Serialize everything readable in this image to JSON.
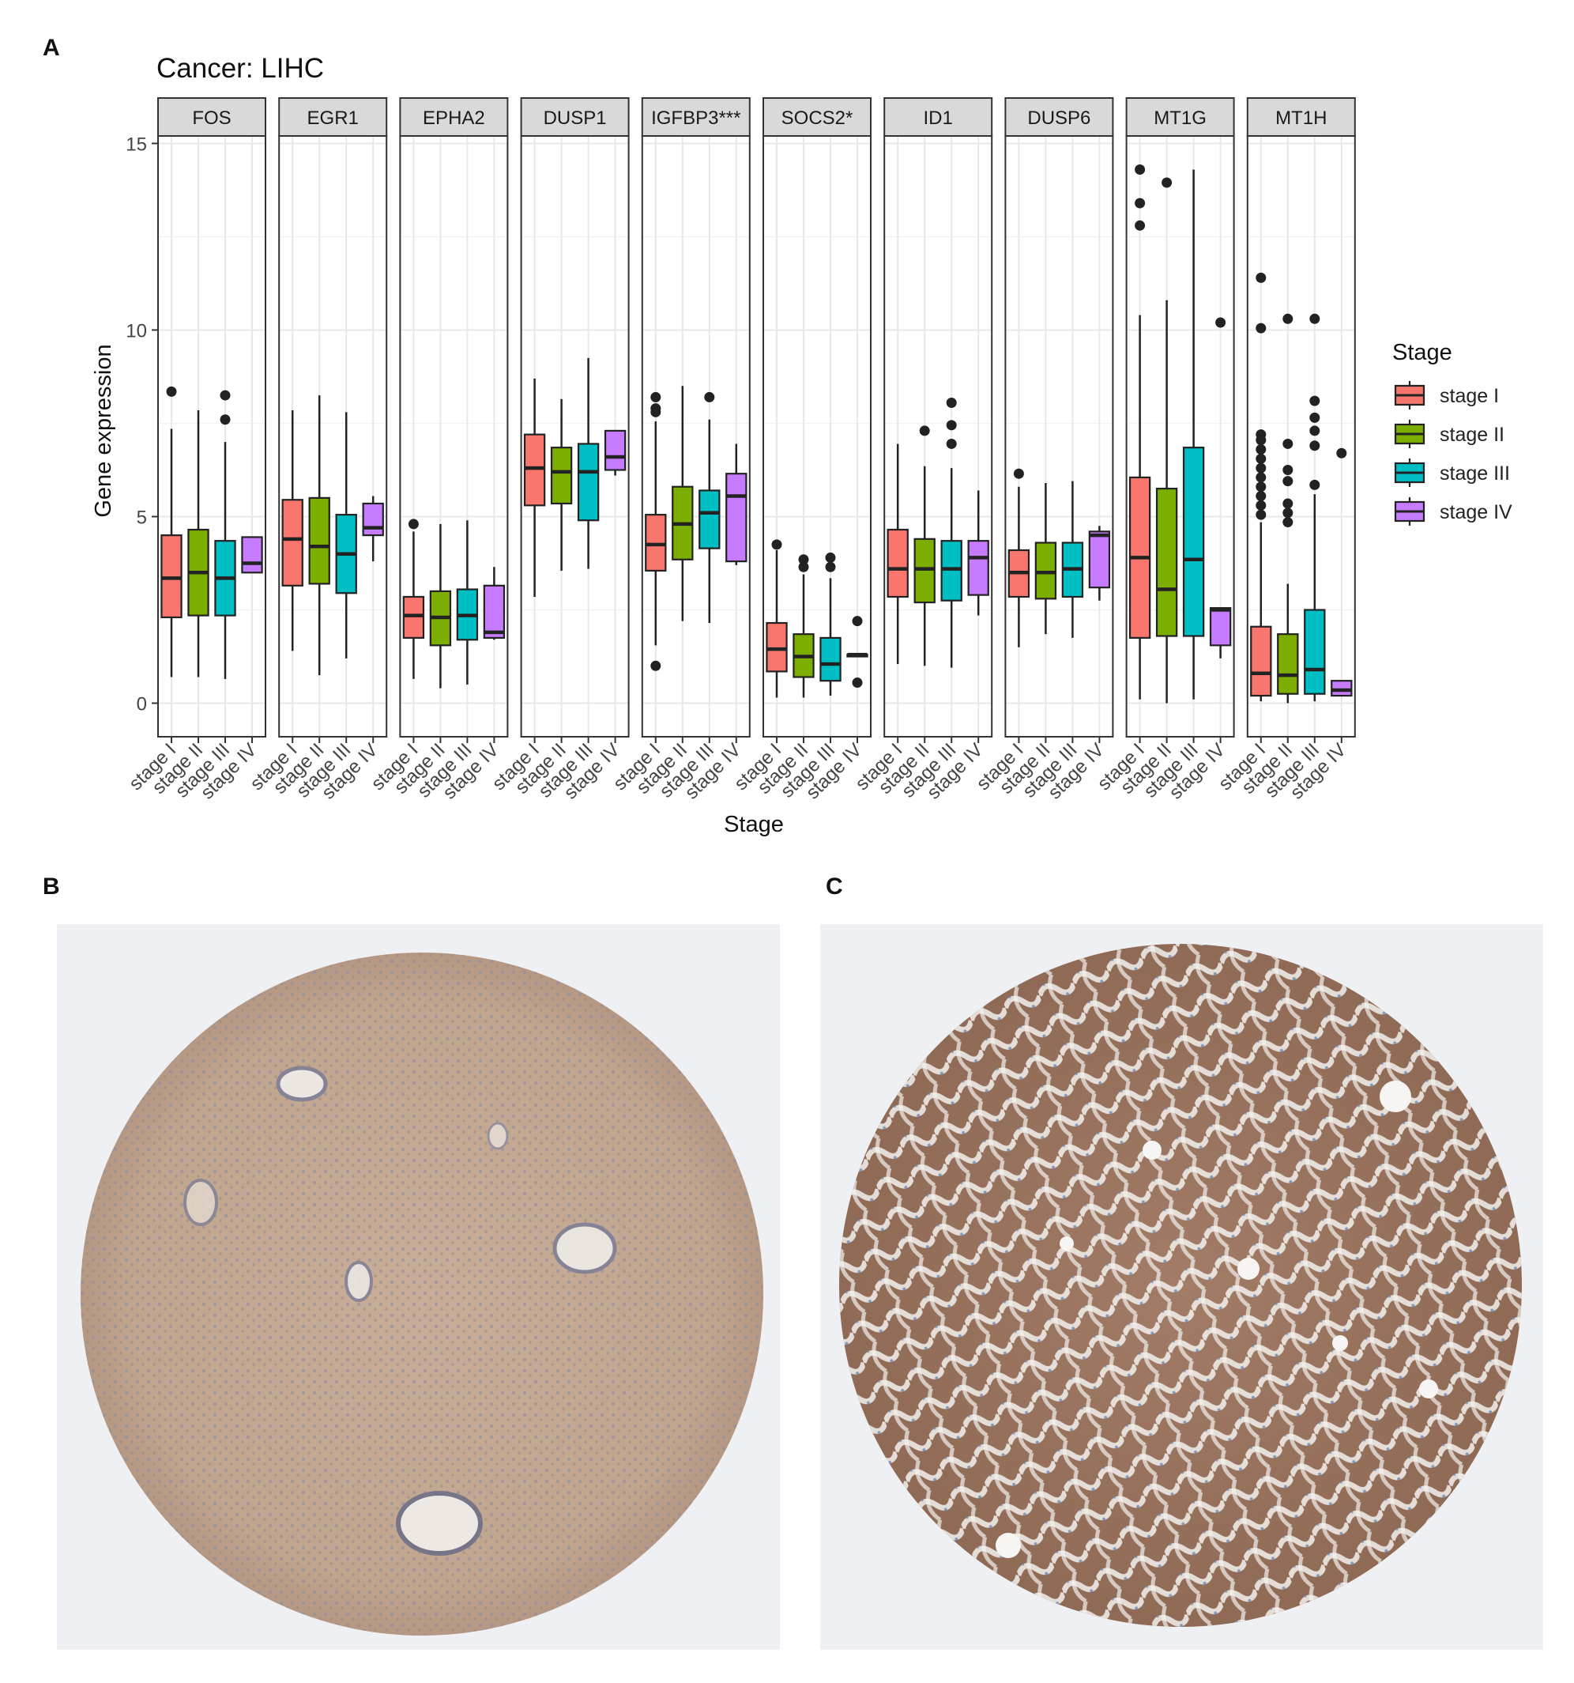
{
  "panels": {
    "a": "A",
    "b": "B",
    "c": "C"
  },
  "chart_data": {
    "type": "boxplot",
    "title": "Cancer: LIHC",
    "xlabel": "Stage",
    "ylabel": "Gene expression",
    "ylim": [
      -0.9,
      15.2
    ],
    "yticks": [
      0,
      5,
      10,
      15
    ],
    "grid": true,
    "legend": {
      "title": "Stage",
      "position": "right"
    },
    "categories": [
      "stage I",
      "stage II",
      "stage III",
      "stage IV"
    ],
    "colors": [
      "#F8766D",
      "#7CAE00",
      "#00BFC4",
      "#C77CFF"
    ],
    "facets": [
      {
        "gene": "FOS",
        "boxes": [
          {
            "q1": 2.3,
            "median": 3.35,
            "q3": 4.5,
            "lo": 0.7,
            "hi": 7.35,
            "outliers": [
              8.35
            ]
          },
          {
            "q1": 2.35,
            "median": 3.5,
            "q3": 4.65,
            "lo": 0.7,
            "hi": 7.85,
            "outliers": []
          },
          {
            "q1": 2.35,
            "median": 3.35,
            "q3": 4.35,
            "lo": 0.65,
            "hi": 7.0,
            "outliers": [
              7.6,
              8.25
            ]
          },
          {
            "q1": 3.5,
            "median": 3.75,
            "q3": 4.45,
            "lo": 3.5,
            "hi": 4.45,
            "outliers": []
          }
        ]
      },
      {
        "gene": "EGR1",
        "boxes": [
          {
            "q1": 3.15,
            "median": 4.4,
            "q3": 5.45,
            "lo": 1.4,
            "hi": 7.85,
            "outliers": []
          },
          {
            "q1": 3.2,
            "median": 4.2,
            "q3": 5.5,
            "lo": 0.75,
            "hi": 8.25,
            "outliers": []
          },
          {
            "q1": 2.95,
            "median": 4.0,
            "q3": 5.05,
            "lo": 1.2,
            "hi": 7.8,
            "outliers": []
          },
          {
            "q1": 4.5,
            "median": 4.7,
            "q3": 5.35,
            "lo": 3.8,
            "hi": 5.55,
            "outliers": []
          }
        ]
      },
      {
        "gene": "EPHA2",
        "boxes": [
          {
            "q1": 1.75,
            "median": 2.35,
            "q3": 2.85,
            "lo": 0.65,
            "hi": 4.6,
            "outliers": [
              4.8
            ]
          },
          {
            "q1": 1.55,
            "median": 2.3,
            "q3": 3.0,
            "lo": 0.4,
            "hi": 4.8,
            "outliers": []
          },
          {
            "q1": 1.7,
            "median": 2.35,
            "q3": 3.05,
            "lo": 0.5,
            "hi": 4.9,
            "outliers": []
          },
          {
            "q1": 1.75,
            "median": 1.9,
            "q3": 3.15,
            "lo": 1.7,
            "hi": 3.65,
            "outliers": []
          }
        ]
      },
      {
        "gene": "DUSP1",
        "boxes": [
          {
            "q1": 5.3,
            "median": 6.3,
            "q3": 7.2,
            "lo": 2.85,
            "hi": 8.7,
            "outliers": []
          },
          {
            "q1": 5.35,
            "median": 6.2,
            "q3": 6.85,
            "lo": 3.55,
            "hi": 8.15,
            "outliers": []
          },
          {
            "q1": 4.9,
            "median": 6.2,
            "q3": 6.95,
            "lo": 3.6,
            "hi": 9.25,
            "outliers": []
          },
          {
            "q1": 6.25,
            "median": 6.6,
            "q3": 7.3,
            "lo": 6.1,
            "hi": 7.3,
            "outliers": []
          }
        ]
      },
      {
        "gene": "IGFBP3***",
        "boxes": [
          {
            "q1": 3.55,
            "median": 4.25,
            "q3": 5.05,
            "lo": 1.55,
            "hi": 7.55,
            "outliers": [
              1.0,
              7.8,
              7.9,
              8.2
            ]
          },
          {
            "q1": 3.85,
            "median": 4.8,
            "q3": 5.8,
            "lo": 2.2,
            "hi": 8.5,
            "outliers": []
          },
          {
            "q1": 4.15,
            "median": 5.1,
            "q3": 5.7,
            "lo": 2.15,
            "hi": 7.6,
            "outliers": [
              8.2
            ]
          },
          {
            "q1": 3.8,
            "median": 5.55,
            "q3": 6.15,
            "lo": 3.7,
            "hi": 6.95,
            "outliers": []
          }
        ]
      },
      {
        "gene": "SOCS2*",
        "boxes": [
          {
            "q1": 0.85,
            "median": 1.45,
            "q3": 2.15,
            "lo": 0.15,
            "hi": 4.1,
            "outliers": [
              4.25
            ]
          },
          {
            "q1": 0.7,
            "median": 1.25,
            "q3": 1.85,
            "lo": 0.15,
            "hi": 3.45,
            "outliers": [
              3.65,
              3.85
            ]
          },
          {
            "q1": 0.6,
            "median": 1.05,
            "q3": 1.75,
            "lo": 0.2,
            "hi": 3.35,
            "outliers": [
              3.65,
              3.9
            ]
          },
          {
            "q1": 1.25,
            "median": 1.3,
            "q3": 1.3,
            "lo": 1.25,
            "hi": 1.3,
            "outliers": [
              0.55,
              2.2
            ]
          }
        ]
      },
      {
        "gene": "ID1",
        "boxes": [
          {
            "q1": 2.85,
            "median": 3.6,
            "q3": 4.65,
            "lo": 1.05,
            "hi": 6.95,
            "outliers": []
          },
          {
            "q1": 2.7,
            "median": 3.6,
            "q3": 4.4,
            "lo": 1.0,
            "hi": 6.35,
            "outliers": [
              7.3
            ]
          },
          {
            "q1": 2.75,
            "median": 3.6,
            "q3": 4.35,
            "lo": 0.95,
            "hi": 6.3,
            "outliers": [
              6.95,
              7.45,
              8.05
            ]
          },
          {
            "q1": 2.9,
            "median": 3.9,
            "q3": 4.35,
            "lo": 2.35,
            "hi": 5.7,
            "outliers": []
          }
        ]
      },
      {
        "gene": "DUSP6",
        "boxes": [
          {
            "q1": 2.85,
            "median": 3.5,
            "q3": 4.1,
            "lo": 1.5,
            "hi": 5.8,
            "outliers": [
              6.15
            ]
          },
          {
            "q1": 2.8,
            "median": 3.5,
            "q3": 4.3,
            "lo": 1.85,
            "hi": 5.9,
            "outliers": []
          },
          {
            "q1": 2.85,
            "median": 3.6,
            "q3": 4.3,
            "lo": 1.75,
            "hi": 5.95,
            "outliers": []
          },
          {
            "q1": 3.1,
            "median": 4.5,
            "q3": 4.6,
            "lo": 2.75,
            "hi": 4.75,
            "outliers": []
          }
        ]
      },
      {
        "gene": "MT1G",
        "boxes": [
          {
            "q1": 1.75,
            "median": 3.9,
            "q3": 6.05,
            "lo": 0.1,
            "hi": 10.4,
            "outliers": [
              12.8,
              13.4,
              14.3
            ]
          },
          {
            "q1": 1.8,
            "median": 3.05,
            "q3": 5.75,
            "lo": 0.0,
            "hi": 10.8,
            "outliers": [
              13.95
            ]
          },
          {
            "q1": 1.8,
            "median": 3.85,
            "q3": 6.85,
            "lo": 0.1,
            "hi": 14.3,
            "outliers": []
          },
          {
            "q1": 1.55,
            "median": 2.5,
            "q3": 2.55,
            "lo": 1.2,
            "hi": 2.55,
            "outliers": [
              10.2
            ]
          }
        ]
      },
      {
        "gene": "MT1H",
        "boxes": [
          {
            "q1": 0.2,
            "median": 0.8,
            "q3": 2.05,
            "lo": 0.05,
            "hi": 4.85,
            "outliers": [
              5.05,
              5.3,
              5.55,
              5.8,
              6.05,
              6.3,
              6.55,
              6.8,
              7.05,
              7.2,
              10.05,
              11.4
            ]
          },
          {
            "q1": 0.25,
            "median": 0.75,
            "q3": 1.85,
            "lo": 0.0,
            "hi": 3.2,
            "outliers": [
              4.85,
              5.1,
              5.35,
              5.95,
              6.25,
              6.95,
              10.3
            ]
          },
          {
            "q1": 0.25,
            "median": 0.9,
            "q3": 2.5,
            "lo": 0.05,
            "hi": 5.6,
            "outliers": [
              5.85,
              6.9,
              7.3,
              7.65,
              8.1,
              10.3
            ]
          },
          {
            "q1": 0.2,
            "median": 0.35,
            "q3": 0.6,
            "lo": 0.2,
            "hi": 0.6,
            "outliers": [
              6.7
            ]
          }
        ]
      }
    ]
  },
  "images": [
    {
      "panel": "B",
      "content": "liver tissue microarray core, light brown immunostaining"
    },
    {
      "panel": "C",
      "content": "liver tumor tissue microarray core, strong brown immunostaining"
    }
  ]
}
